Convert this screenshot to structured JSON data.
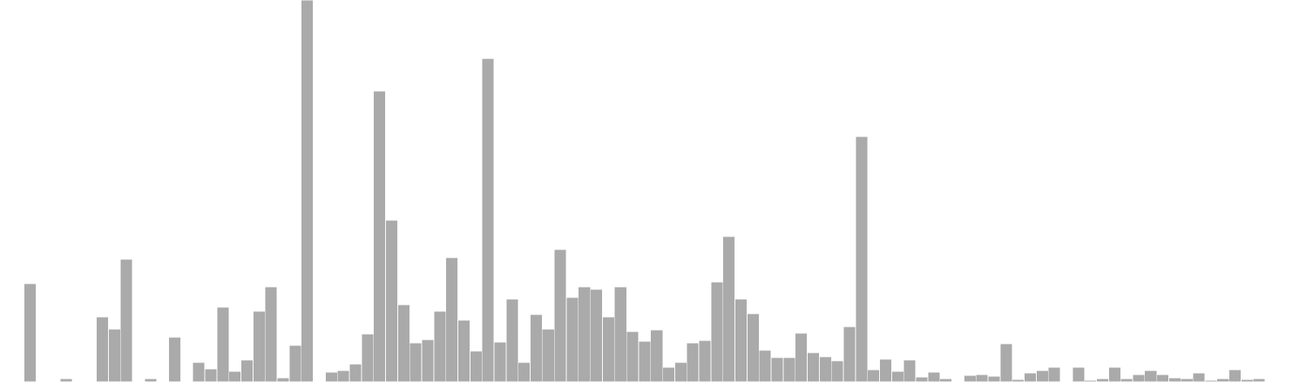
{
  "chart_data": {
    "type": "bar",
    "bar_color": "#aaaaaa",
    "edge_color": "#ffffff",
    "background": "#ffffff",
    "ylim": [
      0,
      470
    ],
    "grid": false,
    "legend": "none",
    "values": [
      0,
      1,
      121,
      0,
      0,
      4,
      1,
      0,
      80,
      65,
      151,
      1,
      4,
      0,
      55,
      1,
      24,
      16,
      92,
      13,
      27,
      87,
      117,
      5,
      45,
      470,
      0,
      12,
      14,
      22,
      59,
      358,
      199,
      95,
      48,
      52,
      87,
      153,
      76,
      38,
      398,
      49,
      102,
      24,
      83,
      65,
      163,
      104,
      117,
      114,
      80,
      117,
      62,
      50,
      64,
      18,
      24,
      48,
      51,
      123,
      179,
      102,
      84,
      39,
      30,
      30,
      60,
      36,
      31,
      26,
      68,
      302,
      15,
      28,
      13,
      27,
      6,
      12,
      4,
      1,
      8,
      9,
      7,
      47,
      3,
      11,
      14,
      18,
      0,
      18,
      2,
      4,
      18,
      4,
      9,
      14,
      9,
      5,
      4,
      11,
      2,
      4,
      15,
      3,
      4,
      1
    ]
  }
}
